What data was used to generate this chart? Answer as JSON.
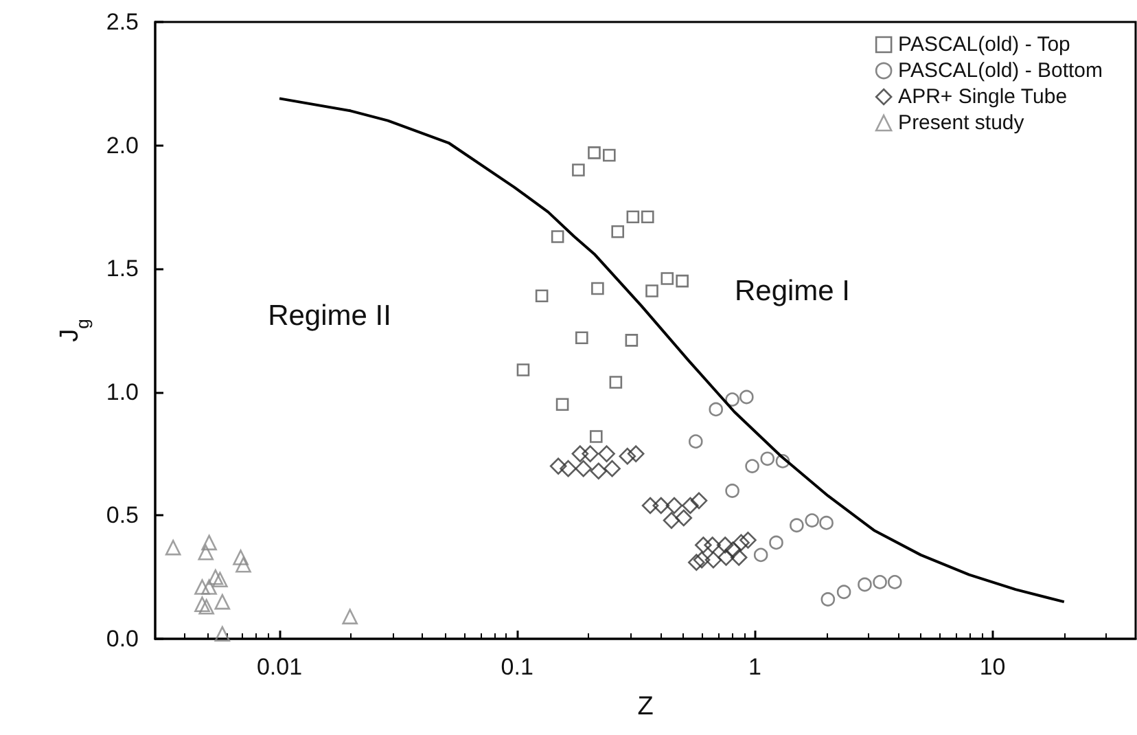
{
  "chart_data": {
    "type": "scatter",
    "xlabel": "Z",
    "ylabel": "J$_{g}$",
    "log": "x",
    "grid": false,
    "legend": "top right",
    "xlim": [
      0.003,
      40
    ],
    "xticks": [
      0.01,
      0.1,
      1,
      10
    ],
    "ylim": [
      0,
      2.5
    ],
    "yticks": [
      {
        "value": 0,
        "label": "0.0"
      },
      {
        "value": 0.5,
        "label": "0.5"
      },
      {
        "value": 1,
        "label": "1.0"
      },
      {
        "value": 1.5,
        "label": "1.5"
      },
      {
        "value": 2,
        "label": "2.0"
      },
      {
        "value": 2.5,
        "label": "2.5"
      }
    ],
    "annotations": [
      "Regime II",
      "Regime I"
    ],
    "series": [
      {
        "name": "PASCAL(old) - Top",
        "marker": "square",
        "color": "#555555",
        "x": [
          0.106,
          0.127,
          0.148,
          0.155,
          0.181,
          0.187,
          0.211,
          0.215,
          0.218,
          0.244,
          0.26,
          0.265,
          0.303,
          0.307,
          0.354,
          0.369,
          0.428,
          0.495
        ],
        "values": [
          1.09,
          1.39,
          1.63,
          0.95,
          1.9,
          1.22,
          1.97,
          0.82,
          1.42,
          1.96,
          1.04,
          1.65,
          1.21,
          1.71,
          1.71,
          1.41,
          1.46,
          1.45
        ]
      },
      {
        "name": "PASCAL(old) - Bottom",
        "marker": "circle",
        "color": "#666666",
        "x": [
          0.564,
          0.686,
          0.804,
          0.804,
          0.923,
          0.975,
          1.06,
          1.13,
          1.23,
          1.31,
          1.5,
          1.74,
          2.0,
          2.03,
          2.37,
          2.9,
          3.36,
          3.88
        ],
        "values": [
          0.8,
          0.93,
          0.97,
          0.6,
          0.98,
          0.7,
          0.34,
          0.73,
          0.39,
          0.72,
          0.46,
          0.48,
          0.47,
          0.16,
          0.19,
          0.22,
          0.23,
          0.23
        ]
      },
      {
        "name": "APR+ Single Tube",
        "marker": "diamond",
        "color": "#333333",
        "x": [
          0.149,
          0.164,
          0.184,
          0.19,
          0.203,
          0.22,
          0.238,
          0.251,
          0.291,
          0.316,
          0.363,
          0.403,
          0.446,
          0.458,
          0.502,
          0.535,
          0.582,
          0.568,
          0.598,
          0.607,
          0.663,
          0.669,
          0.75,
          0.757,
          0.809,
          0.857,
          0.876,
          0.936
        ],
        "values": [
          0.7,
          0.69,
          0.75,
          0.69,
          0.75,
          0.68,
          0.75,
          0.69,
          0.74,
          0.75,
          0.54,
          0.54,
          0.48,
          0.54,
          0.49,
          0.54,
          0.56,
          0.31,
          0.32,
          0.38,
          0.38,
          0.32,
          0.38,
          0.33,
          0.36,
          0.33,
          0.39,
          0.4
        ]
      },
      {
        "name": "Present study",
        "marker": "triangle",
        "color": "#888888",
        "x": [
          0.00357,
          0.00473,
          0.00473,
          0.0049,
          0.00493,
          0.00506,
          0.00506,
          0.00538,
          0.00562,
          0.00575,
          0.00575,
          0.00687,
          0.00705,
          0.0198
        ],
        "values": [
          0.37,
          0.21,
          0.14,
          0.35,
          0.13,
          0.39,
          0.21,
          0.25,
          0.24,
          0.15,
          0.02,
          0.33,
          0.3,
          0.09
        ]
      },
      {
        "type": "line",
        "marker": "none",
        "line_style": "solid",
        "color": "#000000",
        "x": [
          0.01,
          0.0199,
          0.0286,
          0.0515,
          0.0973,
          0.135,
          0.174,
          0.211,
          0.333,
          0.524,
          0.82,
          1.29,
          2.03,
          3.17,
          4.99,
          7.97,
          12.5,
          20
        ],
        "values": [
          2.19,
          2.14,
          2.1,
          2.01,
          1.83,
          1.73,
          1.63,
          1.56,
          1.35,
          1.13,
          0.92,
          0.74,
          0.58,
          0.44,
          0.34,
          0.26,
          0.2,
          0.15
        ]
      }
    ]
  }
}
